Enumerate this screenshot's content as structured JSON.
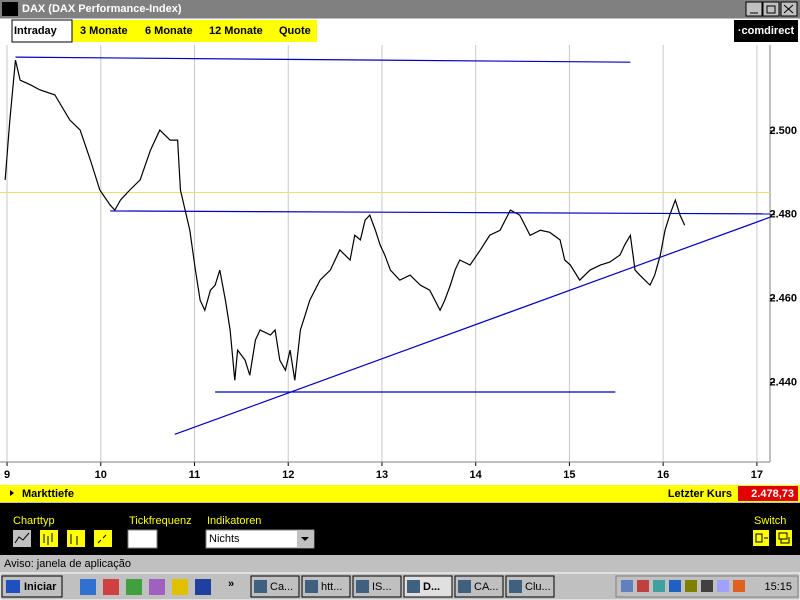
{
  "window": {
    "title": "DAX (DAX Performance-Index)",
    "status": "Aviso: janela de aplicação"
  },
  "tabs": [
    "Intraday",
    "3 Monate",
    "6 Monate",
    "12 Monate",
    "Quote"
  ],
  "logo": "·comdirect",
  "chart_data": {
    "type": "line",
    "xlim": [
      8.925,
      17.14
    ],
    "xticks": [
      9,
      10,
      11,
      12,
      13,
      14,
      15,
      16,
      17
    ],
    "ylim": [
      2421,
      2520.5
    ],
    "yticks": [
      {
        "value": 2440,
        "label": "2.440"
      },
      {
        "value": 2460,
        "label": "2.460"
      },
      {
        "value": 2480,
        "label": "2.480"
      },
      {
        "value": 2500,
        "label": "2.500"
      }
    ],
    "reference_line": {
      "value": 2485.3,
      "color": "#f0e060"
    },
    "grid": true,
    "series": [
      {
        "color": "#000000",
        "x": [
          8.98,
          9.03,
          9.09,
          9.14,
          9.25,
          9.35,
          9.51,
          9.67,
          9.78,
          9.89,
          9.99,
          10.1,
          10.15,
          10.21,
          10.31,
          10.42,
          10.53,
          10.63,
          10.74,
          10.82,
          10.85,
          10.9,
          10.95,
          11.01,
          11.06,
          11.11,
          11.17,
          11.22,
          11.27,
          11.33,
          11.38,
          11.43,
          11.46,
          11.54,
          11.59,
          11.65,
          11.7,
          11.81,
          11.86,
          11.91,
          11.97,
          12.02,
          12.07,
          12.13,
          12.18,
          12.23,
          12.34,
          12.45,
          12.55,
          12.66,
          12.71,
          12.77,
          12.82,
          12.87,
          12.93,
          12.98,
          13.03,
          13.09,
          13.19,
          13.3,
          13.41,
          13.51,
          13.62,
          13.67,
          13.73,
          13.78,
          13.83,
          13.94,
          14.05,
          14.15,
          14.26,
          14.37,
          14.47,
          14.58,
          14.69,
          14.79,
          14.9,
          14.95,
          15.01,
          15.11,
          15.22,
          15.33,
          15.43,
          15.54,
          15.59,
          15.65,
          15.7,
          15.75,
          15.86,
          15.91,
          15.97,
          16.02,
          16.07,
          16.13,
          16.18,
          16.23
        ],
        "values": [
          2488.3,
          2502.6,
          2516.9,
          2512.1,
          2511.0,
          2509.8,
          2508.6,
          2502.6,
          2500.2,
          2493.0,
          2485.9,
          2482.3,
          2481.1,
          2483.5,
          2485.9,
          2488.3,
          2495.4,
          2500.2,
          2497.8,
          2497.8,
          2485.9,
          2481.1,
          2476.3,
          2466.8,
          2459.6,
          2457.2,
          2462.0,
          2463.2,
          2466.8,
          2459.6,
          2452.5,
          2440.5,
          2447.7,
          2445.3,
          2441.7,
          2450.1,
          2452.5,
          2451.3,
          2452.5,
          2445.3,
          2442.9,
          2447.7,
          2440.5,
          2452.5,
          2456.0,
          2459.6,
          2464.4,
          2466.8,
          2471.6,
          2469.2,
          2475.1,
          2474.0,
          2478.7,
          2479.9,
          2476.3,
          2472.8,
          2470.4,
          2466.8,
          2464.4,
          2465.6,
          2463.2,
          2462.0,
          2457.2,
          2459.6,
          2463.2,
          2466.8,
          2469.2,
          2468.0,
          2471.6,
          2475.1,
          2476.3,
          2481.1,
          2479.9,
          2475.1,
          2476.3,
          2475.8,
          2474.0,
          2469.2,
          2468.0,
          2464.4,
          2466.8,
          2468.0,
          2468.7,
          2470.4,
          2472.8,
          2475.1,
          2466.8,
          2465.6,
          2463.2,
          2465.6,
          2470.4,
          2476.3,
          2479.9,
          2483.5,
          2479.9,
          2477.5
        ]
      },
      {
        "color": "#0000c0",
        "x": [
          9.09,
          15.65
        ],
        "values": [
          2517.6,
          2516.4
        ]
      },
      {
        "color": "#0000c0",
        "x": [
          10.1,
          17.14
        ],
        "values": [
          2480.9,
          2480.2
        ]
      },
      {
        "color": "#0000c0",
        "x": [
          11.22,
          15.49
        ],
        "values": [
          2437.7,
          2437.7
        ]
      },
      {
        "color": "#0000c0",
        "x": [
          10.79,
          17.14
        ],
        "values": [
          2427.6,
          2479.4
        ]
      }
    ]
  },
  "info_bar": {
    "depth": "Markttiefe",
    "last_label": "Letzter Kurs",
    "last_price": "2.478,73"
  },
  "controls": {
    "chart_type": "Charttyp",
    "tick": "Tickfrequenz",
    "indicators": "Indikatoren",
    "indicator_value": "Nichts",
    "switch": "Switch"
  },
  "taskbar": {
    "start": "Iniciar",
    "tasks": [
      "Ca...",
      "htt...",
      "IS...",
      "D...",
      "CA...",
      "Clu..."
    ],
    "clock": "15:15"
  }
}
